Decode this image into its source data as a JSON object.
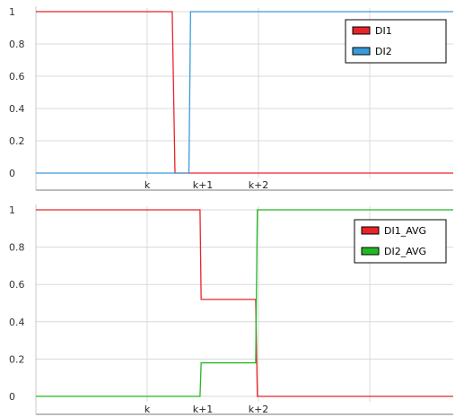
{
  "chart_data": [
    {
      "type": "line",
      "step": true,
      "title": "",
      "xlabel": "",
      "ylabel": "",
      "xlim": [
        -2,
        5.5
      ],
      "ylim": [
        0,
        1
      ],
      "y_ticks": [
        {
          "value": 0,
          "label": "0"
        },
        {
          "value": 0.2,
          "label": "0.2"
        },
        {
          "value": 0.4,
          "label": "0.4"
        },
        {
          "value": 0.6,
          "label": "0.6"
        },
        {
          "value": 0.8,
          "label": "0.8"
        },
        {
          "value": 1,
          "label": "1"
        }
      ],
      "x_ticks": [
        {
          "value": 0,
          "label": "k"
        },
        {
          "value": 1,
          "label": "k+1"
        },
        {
          "value": 2,
          "label": "k+2"
        }
      ],
      "x_gridlines": [
        -2,
        0,
        2,
        4
      ],
      "grid": true,
      "legend_position": "top-right",
      "series": [
        {
          "name": "DI1",
          "color": "#e8242a",
          "points": [
            [
              -2,
              1
            ],
            [
              0.45,
              1
            ],
            [
              0.5,
              0
            ],
            [
              5.5,
              0
            ]
          ]
        },
        {
          "name": "DI2",
          "color": "#3a9ad9",
          "points": [
            [
              -2,
              0
            ],
            [
              0.75,
              0
            ],
            [
              0.78,
              1
            ],
            [
              5.5,
              1
            ]
          ]
        }
      ]
    },
    {
      "type": "line",
      "step": true,
      "title": "",
      "xlabel": "",
      "ylabel": "",
      "xlim": [
        -2,
        5.5
      ],
      "ylim": [
        0,
        1
      ],
      "y_ticks": [
        {
          "value": 0,
          "label": "0"
        },
        {
          "value": 0.2,
          "label": "0.2"
        },
        {
          "value": 0.4,
          "label": "0.4"
        },
        {
          "value": 0.6,
          "label": "0.6"
        },
        {
          "value": 0.8,
          "label": "0.8"
        },
        {
          "value": 1,
          "label": "1"
        }
      ],
      "x_ticks": [
        {
          "value": 0,
          "label": "k"
        },
        {
          "value": 1,
          "label": "k+1"
        },
        {
          "value": 2,
          "label": "k+2"
        }
      ],
      "x_gridlines": [
        -2,
        0,
        2,
        4
      ],
      "grid": true,
      "legend_position": "top-right",
      "series": [
        {
          "name": "DI1_AVG",
          "color": "#e8242a",
          "points": [
            [
              -2,
              1
            ],
            [
              0.95,
              1
            ],
            [
              0.97,
              0.52
            ],
            [
              1.95,
              0.52
            ],
            [
              1.98,
              0
            ],
            [
              5.5,
              0
            ]
          ]
        },
        {
          "name": "DI2_AVG",
          "color": "#22b822",
          "points": [
            [
              -2,
              0
            ],
            [
              0.95,
              0
            ],
            [
              0.97,
              0.18
            ],
            [
              1.95,
              0.18
            ],
            [
              1.98,
              1
            ],
            [
              5.5,
              1
            ]
          ]
        }
      ]
    }
  ]
}
